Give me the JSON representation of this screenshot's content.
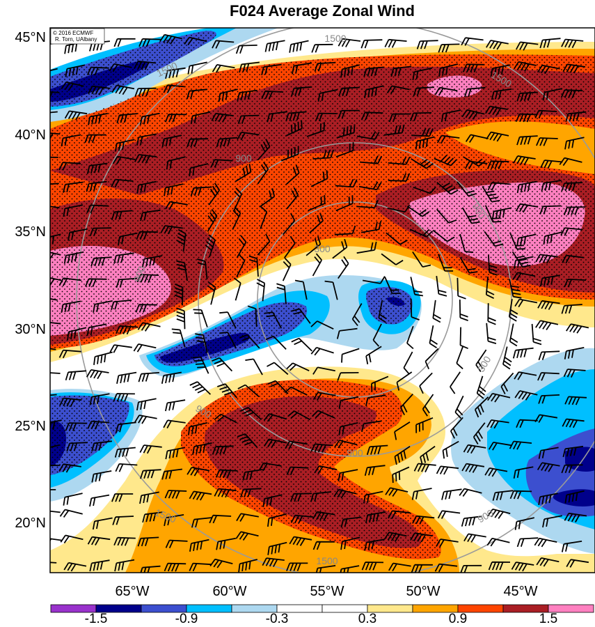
{
  "title": "F024 Average Zonal Wind",
  "credit": {
    "line1": "© 2016 ECMWF",
    "line2": "R. Torn, UAlbany"
  },
  "axes": {
    "lat_labels": [
      "45°N",
      "40°N",
      "35°N",
      "30°N",
      "25°N",
      "20°N"
    ],
    "lon_labels": [
      "65°W",
      "60°W",
      "55°W",
      "50°W",
      "45°W"
    ]
  },
  "colorbar": {
    "colors": [
      "#9932cc",
      "#00008b",
      "#3c4fcf",
      "#00bfff",
      "#add8f0",
      "#ffffff",
      "#ffffff",
      "#ffe88c",
      "#ffa500",
      "#ff4500",
      "#aa1e24",
      "#ff80c0"
    ],
    "labels": [
      "-1.5",
      "-0.9",
      "-0.3",
      "0.3",
      "0.9",
      "1.5"
    ]
  },
  "contour_labels": [
    "1500",
    "1500",
    "1500",
    "1500",
    "1500",
    "900",
    "900",
    "900",
    "900",
    "900",
    "900",
    "300",
    "300"
  ],
  "palette": {
    "red": "#ff4500",
    "darkred": "#aa1e24",
    "pink": "#ff80c0",
    "orange": "#ffa500",
    "yellow": "#ffe88c",
    "white": "#ffffff",
    "lightblue": "#add8f0",
    "cyan": "#00bfff",
    "blue": "#3c4fcf",
    "navy": "#00008b",
    "purple": "#9932cc",
    "circle": "#9a9a9a"
  }
}
